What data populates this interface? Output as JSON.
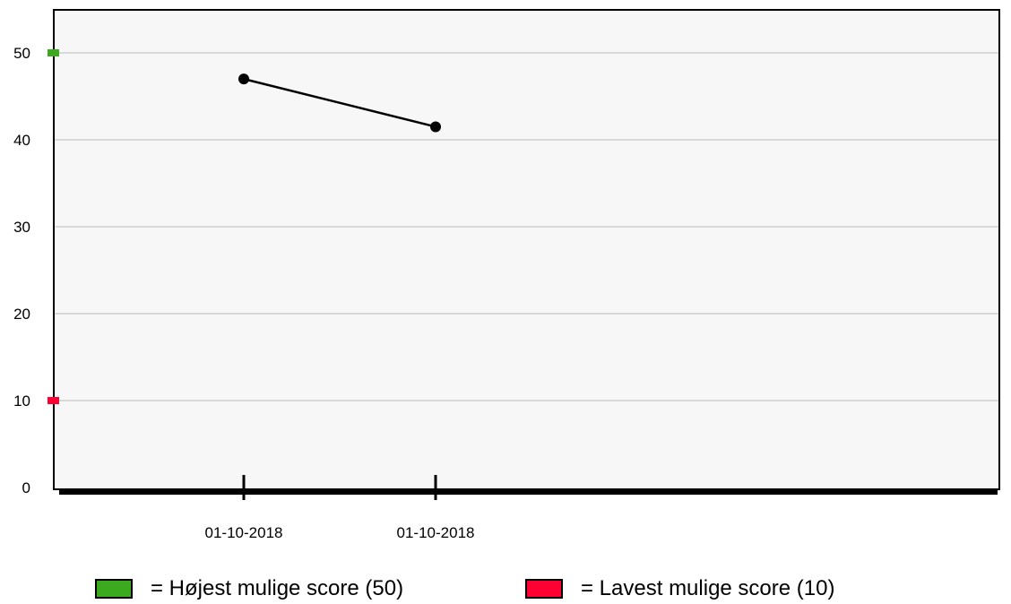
{
  "chart_data": {
    "type": "line",
    "x": [
      "01-10-2018",
      "01-10-2018"
    ],
    "series": [
      {
        "values": [
          47,
          41.5
        ],
        "color": "#000000"
      }
    ],
    "ylim": [
      0,
      50
    ],
    "yticks": [
      0,
      10,
      20,
      30,
      40,
      50
    ],
    "grid": true,
    "background": "#f7f7f7",
    "markers": [
      {
        "value": 50,
        "color": "#3caa1e"
      },
      {
        "value": 10,
        "color": "#ff0033"
      }
    ]
  },
  "legend": [
    {
      "label": "= Højest mulige score (50)",
      "color": "#3caa1e"
    },
    {
      "label": "= Lavest mulige score (10)",
      "color": "#ff0033"
    }
  ]
}
